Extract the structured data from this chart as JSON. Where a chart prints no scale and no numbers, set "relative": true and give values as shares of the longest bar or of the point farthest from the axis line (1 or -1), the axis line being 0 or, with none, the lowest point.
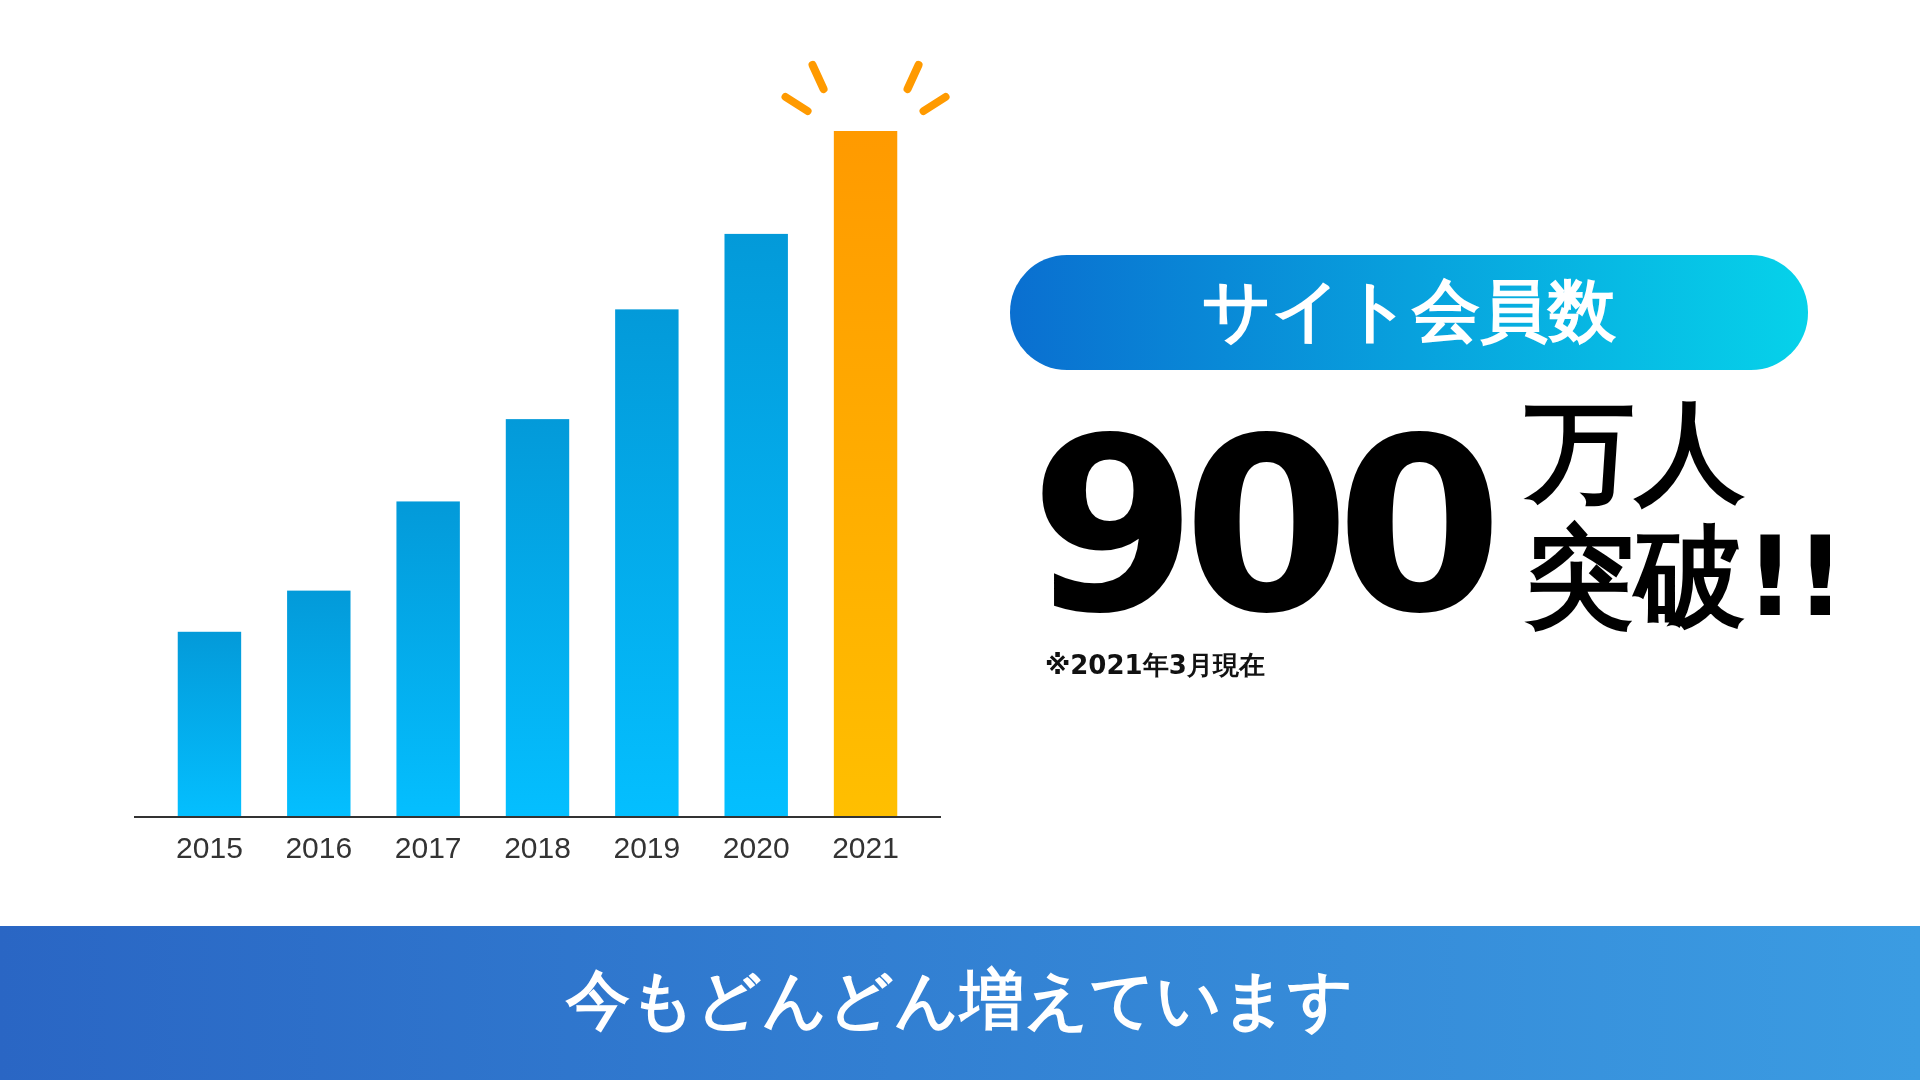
{
  "chart_data": {
    "type": "bar",
    "relative": true,
    "title": "サイト会員数",
    "categories": [
      "2015",
      "2016",
      "2017",
      "2018",
      "2019",
      "2020",
      "2021"
    ],
    "values": [
      0.27,
      0.33,
      0.46,
      0.58,
      0.74,
      0.85,
      1
    ],
    "colors": [
      "#039ad9",
      "#039ad9",
      "#039ad9",
      "#039ad9",
      "#039ad9",
      "#039ad9",
      "#ff9a00"
    ],
    "annotations": [
      "900",
      "万人",
      "突破!!",
      "※2021年3月現在",
      "今もどんどん増えています"
    ]
  }
}
